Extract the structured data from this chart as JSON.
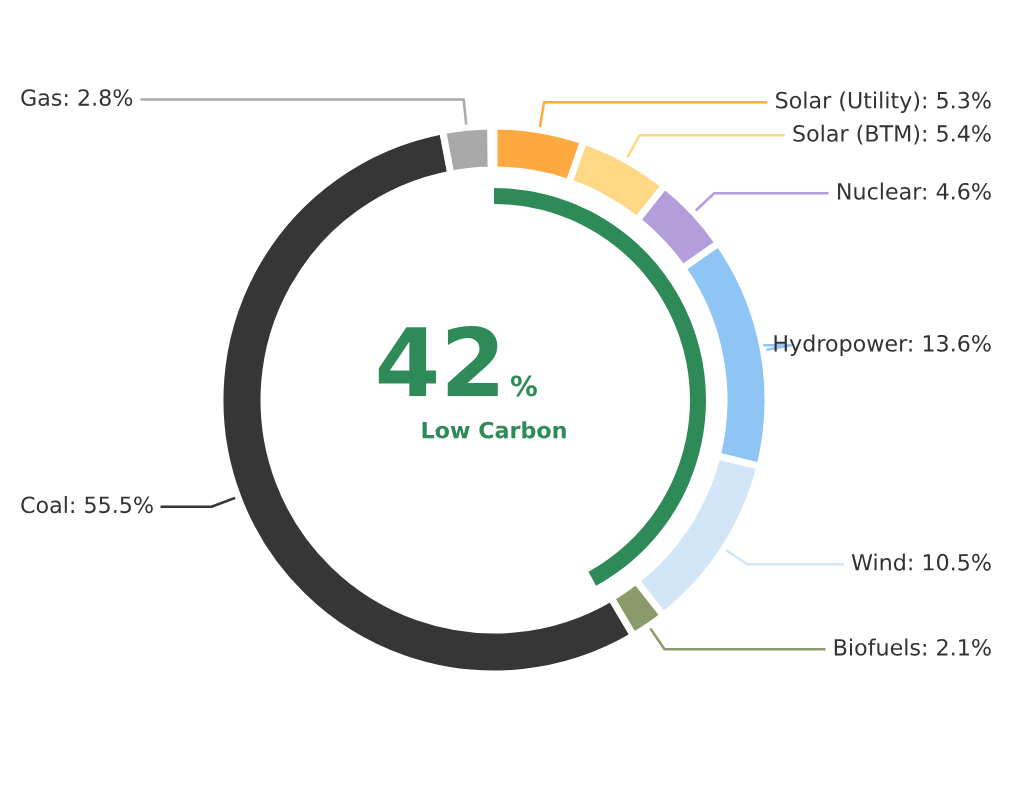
{
  "chart_data": [
    {
      "type": "donut",
      "categories": [
        "Solar (Utility)",
        "Solar (BTM)",
        "Nuclear",
        "Hydropower",
        "Wind",
        "Biofuels",
        "Coal",
        "Gas"
      ],
      "values": [
        5.3,
        5.4,
        4.6,
        13.6,
        10.5,
        2.1,
        55.5,
        2.8
      ],
      "value_labels": [
        "5.3%",
        "5.4%",
        "4.6%",
        "13.6%",
        "10.5%",
        "2.1%",
        "55.5%",
        "2.8%"
      ],
      "colors": [
        "#ffa940",
        "#ffd885",
        "#b39ddb",
        "#8ec5f5",
        "#d2e6f7",
        "#8a9a6b",
        "#363636",
        "#a9a9a9"
      ]
    },
    {
      "type": "other",
      "categories": [
        "Low Carbon"
      ],
      "values": [
        42
      ],
      "value_labels": [
        "42%"
      ],
      "colors": [
        "#2e8b57"
      ]
    }
  ]
}
